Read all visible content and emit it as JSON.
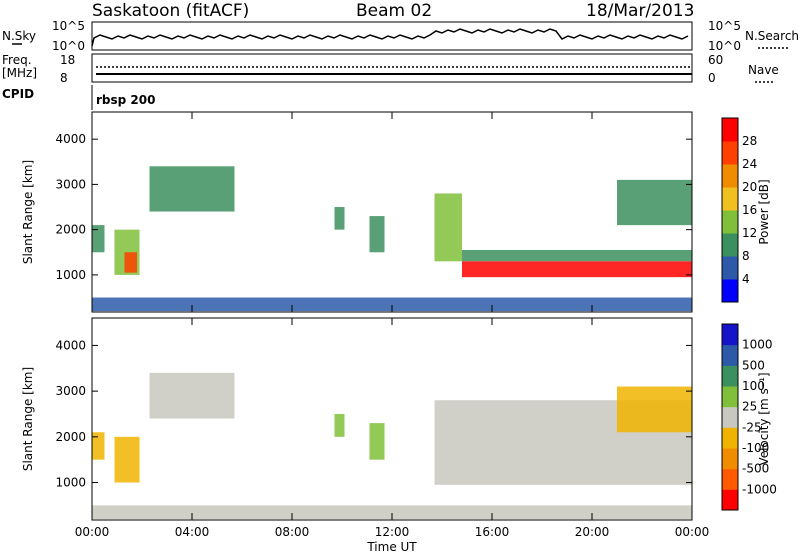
{
  "header": {
    "station": "Saskatoon (fitACF)",
    "beam": "Beam 02",
    "date": "18/Mar/2013"
  },
  "strip": {
    "nsky_label": "N.Sky",
    "nsky_ticks": [
      "10^5",
      "10^0"
    ],
    "nsearch_label": "N.Search",
    "nsearch_ticks": [
      "10^5",
      "10^0"
    ],
    "freq_label": "Freq.",
    "freq_unit": "[MHz]",
    "freq_ticks": [
      "18",
      "8"
    ],
    "nave_label": "Nave",
    "nave_ticks": [
      "60",
      "0"
    ],
    "cpid_label": "CPID",
    "cpid_value": "rbsp 200"
  },
  "colors": {
    "power": [
      "#0000ff",
      "#2c5aa8",
      "#3c8f5e",
      "#7fbf3a",
      "#f0c020",
      "#f08c00",
      "#ff4000",
      "#ff0000"
    ],
    "velocity": [
      "#ff0000",
      "#ff5a00",
      "#f08c00",
      "#f0b400",
      "#c8c8c0",
      "#7fbf3a",
      "#3c8f5e",
      "#2c5aa8",
      "#1414c8"
    ]
  },
  "chart_data": [
    {
      "type": "heatmap",
      "title": "",
      "ylabel": "Slant Range [km]",
      "xlim": [
        "00:00",
        "24:00"
      ],
      "ylim": [
        180,
        4600
      ],
      "yticks": [
        "1000",
        "2000",
        "3000",
        "4000"
      ],
      "colorbar": {
        "label": "Power [dB]",
        "ticks": [
          "4",
          "8",
          "12",
          "16",
          "20",
          "24",
          "28"
        ],
        "range": [
          0,
          32
        ]
      },
      "regions": [
        {
          "t0": 0.0,
          "t1": 0.5,
          "r0": 1500,
          "r1": 2100,
          "value": 8
        },
        {
          "t0": 0.9,
          "t1": 1.9,
          "r0": 1000,
          "r1": 2000,
          "value": 14
        },
        {
          "t0": 1.3,
          "t1": 1.8,
          "r0": 1050,
          "r1": 1500,
          "value": 24
        },
        {
          "t0": 2.3,
          "t1": 5.7,
          "r0": 2400,
          "r1": 3400,
          "value": 10
        },
        {
          "t0": 9.7,
          "t1": 10.1,
          "r0": 2000,
          "r1": 2500,
          "value": 10
        },
        {
          "t0": 11.1,
          "t1": 11.7,
          "r0": 1500,
          "r1": 2300,
          "value": 10
        },
        {
          "t0": 13.7,
          "t1": 14.8,
          "r0": 1300,
          "r1": 2800,
          "value": 12
        },
        {
          "t0": 14.8,
          "t1": 24.0,
          "r0": 1300,
          "r1": 1550,
          "value": 10
        },
        {
          "t0": 14.8,
          "t1": 24.0,
          "r0": 950,
          "r1": 1300,
          "value": 28
        },
        {
          "t0": 21.0,
          "t1": 24.0,
          "r0": 2100,
          "r1": 3100,
          "value": 8
        },
        {
          "t0": 0.0,
          "t1": 24.0,
          "r0": 200,
          "r1": 500,
          "value": 6
        }
      ]
    },
    {
      "type": "heatmap",
      "title": "",
      "xlabel": "Time UT",
      "ylabel": "Slant Range [km]",
      "xlim": [
        "00:00",
        "24:00"
      ],
      "ylim": [
        180,
        4600
      ],
      "xticks": [
        "00:00",
        "04:00",
        "08:00",
        "12:00",
        "16:00",
        "20:00",
        "00:00"
      ],
      "yticks": [
        "1000",
        "2000",
        "3000",
        "4000"
      ],
      "colorbar": {
        "label": "Velocity [m s⁻¹]",
        "ticks": [
          "1000",
          "500",
          "100",
          "25",
          "-25",
          "-100",
          "-500",
          "-1000"
        ],
        "range": [
          -1000,
          1000
        ]
      },
      "regions": [
        {
          "t0": 0.0,
          "t1": 0.5,
          "r0": 1500,
          "r1": 2100,
          "value": -200
        },
        {
          "t0": 0.9,
          "t1": 1.9,
          "r0": 1000,
          "r1": 2000,
          "value": -150
        },
        {
          "t0": 2.3,
          "t1": 5.7,
          "r0": 2400,
          "r1": 3400,
          "value": 0
        },
        {
          "t0": 9.7,
          "t1": 10.1,
          "r0": 2000,
          "r1": 2500,
          "value": 300
        },
        {
          "t0": 11.1,
          "t1": 11.7,
          "r0": 1500,
          "r1": 2300,
          "value": 300
        },
        {
          "t0": 13.7,
          "t1": 24.0,
          "r0": 950,
          "r1": 2800,
          "value": 0
        },
        {
          "t0": 21.0,
          "t1": 24.0,
          "r0": 2100,
          "r1": 3100,
          "value": -300
        },
        {
          "t0": 0.0,
          "t1": 24.0,
          "r0": 200,
          "r1": 500,
          "value": -50
        }
      ]
    }
  ]
}
